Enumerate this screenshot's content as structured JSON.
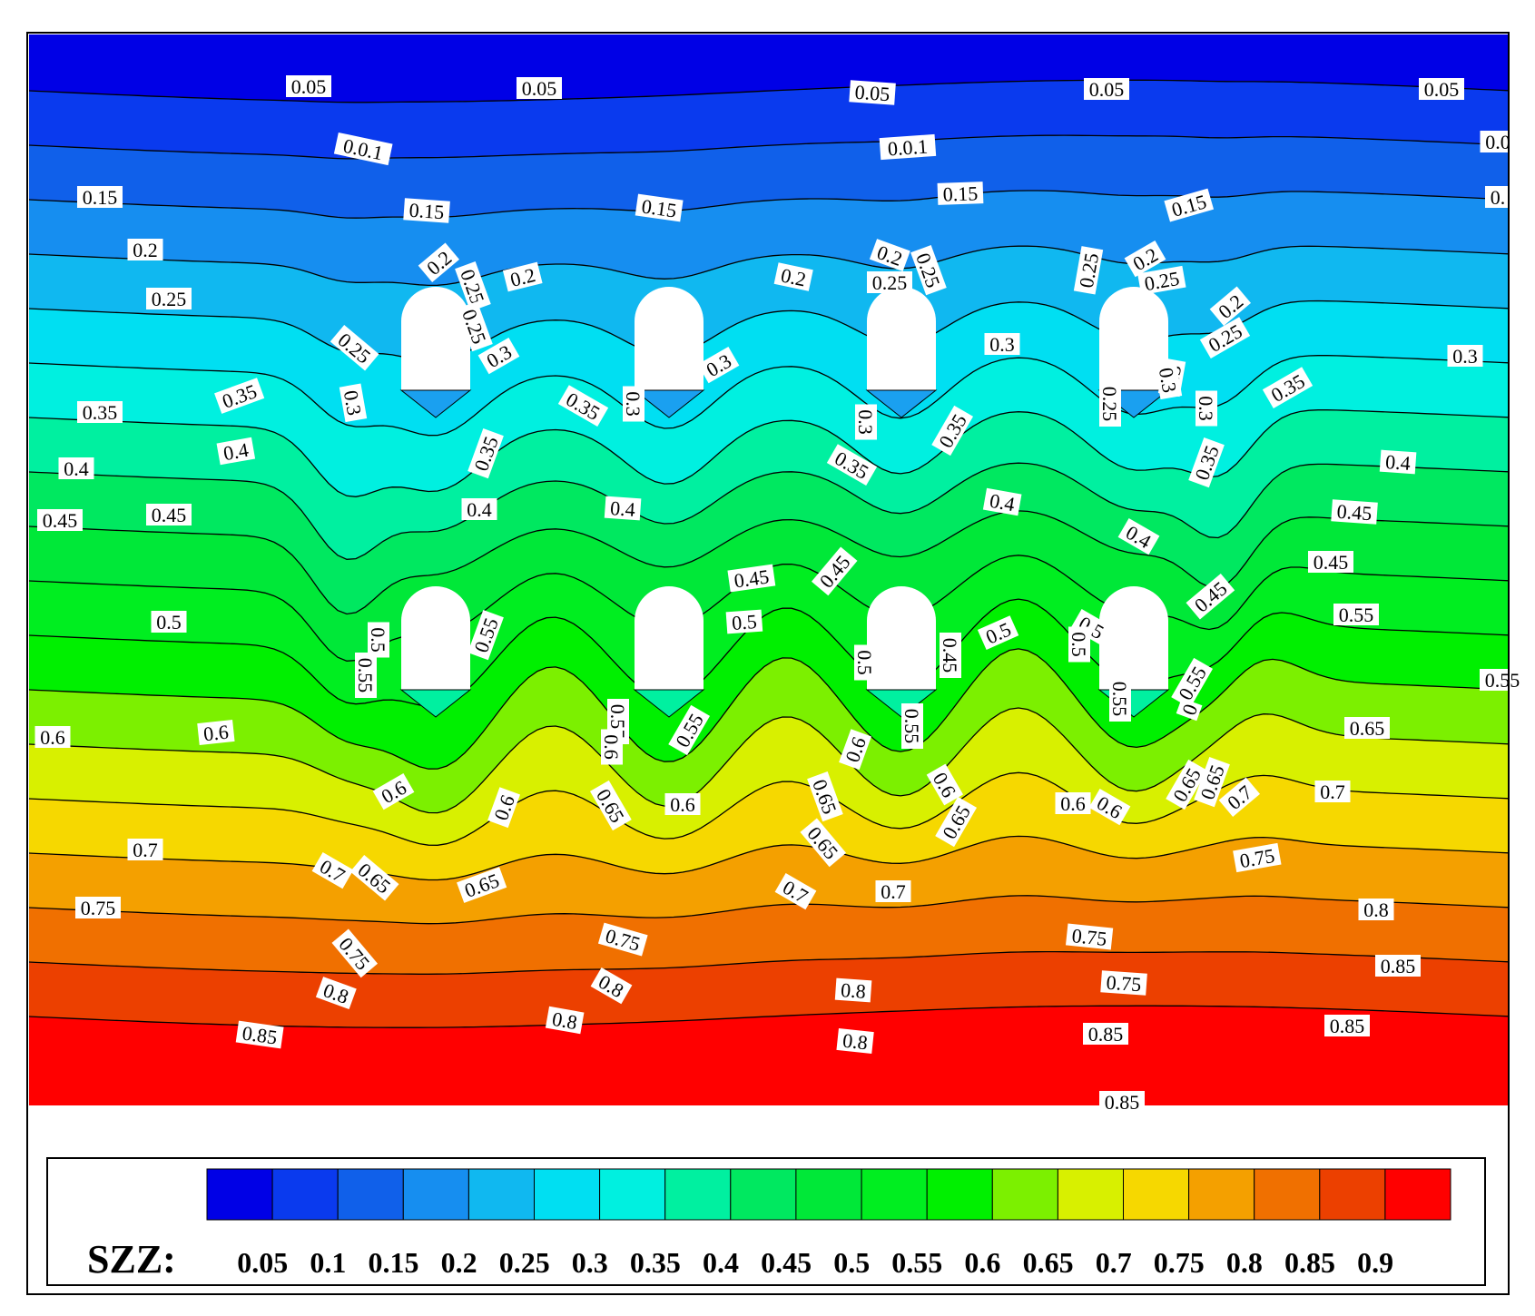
{
  "chart_data": {
    "type": "contour",
    "variable_label": "SZZ:",
    "levels": [
      0.05,
      0.1,
      0.15,
      0.2,
      0.25,
      0.3,
      0.35,
      0.4,
      0.45,
      0.5,
      0.55,
      0.6,
      0.65,
      0.7,
      0.75,
      0.8,
      0.85,
      0.9
    ],
    "level_labels": [
      "0.05",
      "0.1",
      "0.15",
      "0.2",
      "0.25",
      "0.3",
      "0.35",
      "0.4",
      "0.45",
      "0.5",
      "0.55",
      "0.6",
      "0.65",
      "0.7",
      "0.75",
      "0.8",
      "0.85",
      "0.9"
    ],
    "colormap": [
      "#0000e6",
      "#0a3aee",
      "#1060ea",
      "#168ef0",
      "#10b8f0",
      "#00dff2",
      "#00f0e0",
      "#00f0a0",
      "#00e860",
      "#00e838",
      "#00ee20",
      "#00f000",
      "#7cf000",
      "#d8f000",
      "#f6d800",
      "#f4a000",
      "#f07000",
      "#ec4000",
      "#ff0000"
    ],
    "contour_labels": [
      "0.05",
      "0.05",
      "0.05",
      "0.05",
      "0.05",
      "0.0.1",
      "0.0.1",
      "0.0",
      "0.15",
      "0.15",
      "0.15",
      "0.15",
      "0.15",
      "0.",
      "0.2",
      "0.2",
      "0.2",
      "0.2",
      "0.2",
      "0.2",
      "0.2",
      "0.25",
      "0.25",
      "0.25",
      "0.25",
      "0.25",
      "0.25",
      "0.25",
      "0.25",
      "0.25",
      "0.25",
      "0.3",
      "0.3",
      "0.3",
      "0.3",
      "0.3",
      "0.3",
      "0.3",
      "0.3",
      "0.3",
      "0.3",
      "0.35",
      "0.35",
      "0.35",
      "0.35",
      "0.35",
      "0.35",
      "0.35",
      "0.35",
      "0.4",
      "0.4",
      "0.4",
      "0.4",
      "0.4",
      "0.4",
      "0.4",
      "0.45",
      "0.45",
      "0.45",
      "0.45",
      "0.45",
      "0.45",
      "0.45",
      "0.45",
      "0.5",
      "0.5",
      "0.5",
      "0.5",
      "0.5",
      "0.5",
      "0.5",
      "0.55",
      "0.55",
      "0.55",
      "0.55",
      "0.55",
      "0.55",
      "0.55",
      "0.55",
      "0.55",
      "0",
      "0.6",
      "0.6",
      "0.6",
      "0.6",
      "0.6",
      "0.6",
      "0.6",
      "0.6",
      "0.6",
      "0.6",
      "0.65",
      "0.65",
      "0.65",
      "0.65",
      "0.65",
      "0.65",
      "0.65",
      "0.65",
      "0.65",
      "0.7",
      "0.7",
      "0.7",
      "0.7",
      "0.7",
      "0.7",
      "0.75",
      "0.75",
      "0.75",
      "0.75",
      "0.75",
      "0.75",
      "0.75",
      "0.8",
      "0.8",
      "0.8",
      "0.8",
      "0.8",
      "0.8",
      "0.8",
      "0.85",
      "0.85",
      "0.85",
      "0.85",
      "0.85",
      "0.85",
      "0.9",
      "0.9",
      "0.9",
      "0.3",
      "0.3",
      "0.3",
      "0.3",
      "0.3",
      "0.3",
      "0.3",
      "0.3",
      "0.45",
      "0.45",
      "0.45",
      "0.45",
      "0.45",
      "0.4",
      "0.4",
      "0.35",
      "0.35",
      "0.35",
      "0.35"
    ]
  }
}
